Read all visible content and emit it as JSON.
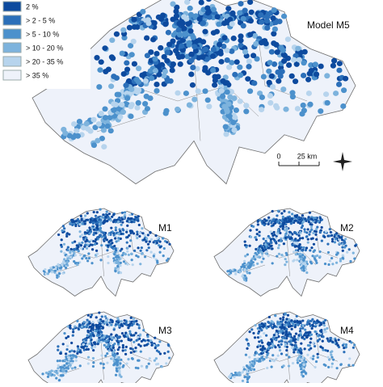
{
  "legend": {
    "items": [
      {
        "label": "2 %",
        "color": "#0d4a9e"
      },
      {
        "label": "> 2 - 5 %",
        "color": "#2b6fb9"
      },
      {
        "label": "> 5 - 10 %",
        "color": "#4c91cc"
      },
      {
        "label": "> 10 - 20 %",
        "color": "#7db3dd"
      },
      {
        "label": "> 20 - 35 %",
        "color": "#b7d4ed"
      },
      {
        "label": "> 35 %",
        "color": "#eef2fa"
      }
    ]
  },
  "maps": [
    {
      "label": "Model M5"
    },
    {
      "label": "M1"
    },
    {
      "label": "M2"
    },
    {
      "label": "M3"
    },
    {
      "label": "M4"
    }
  ],
  "scale_bar": {
    "start": "0",
    "end": "25 km"
  }
}
